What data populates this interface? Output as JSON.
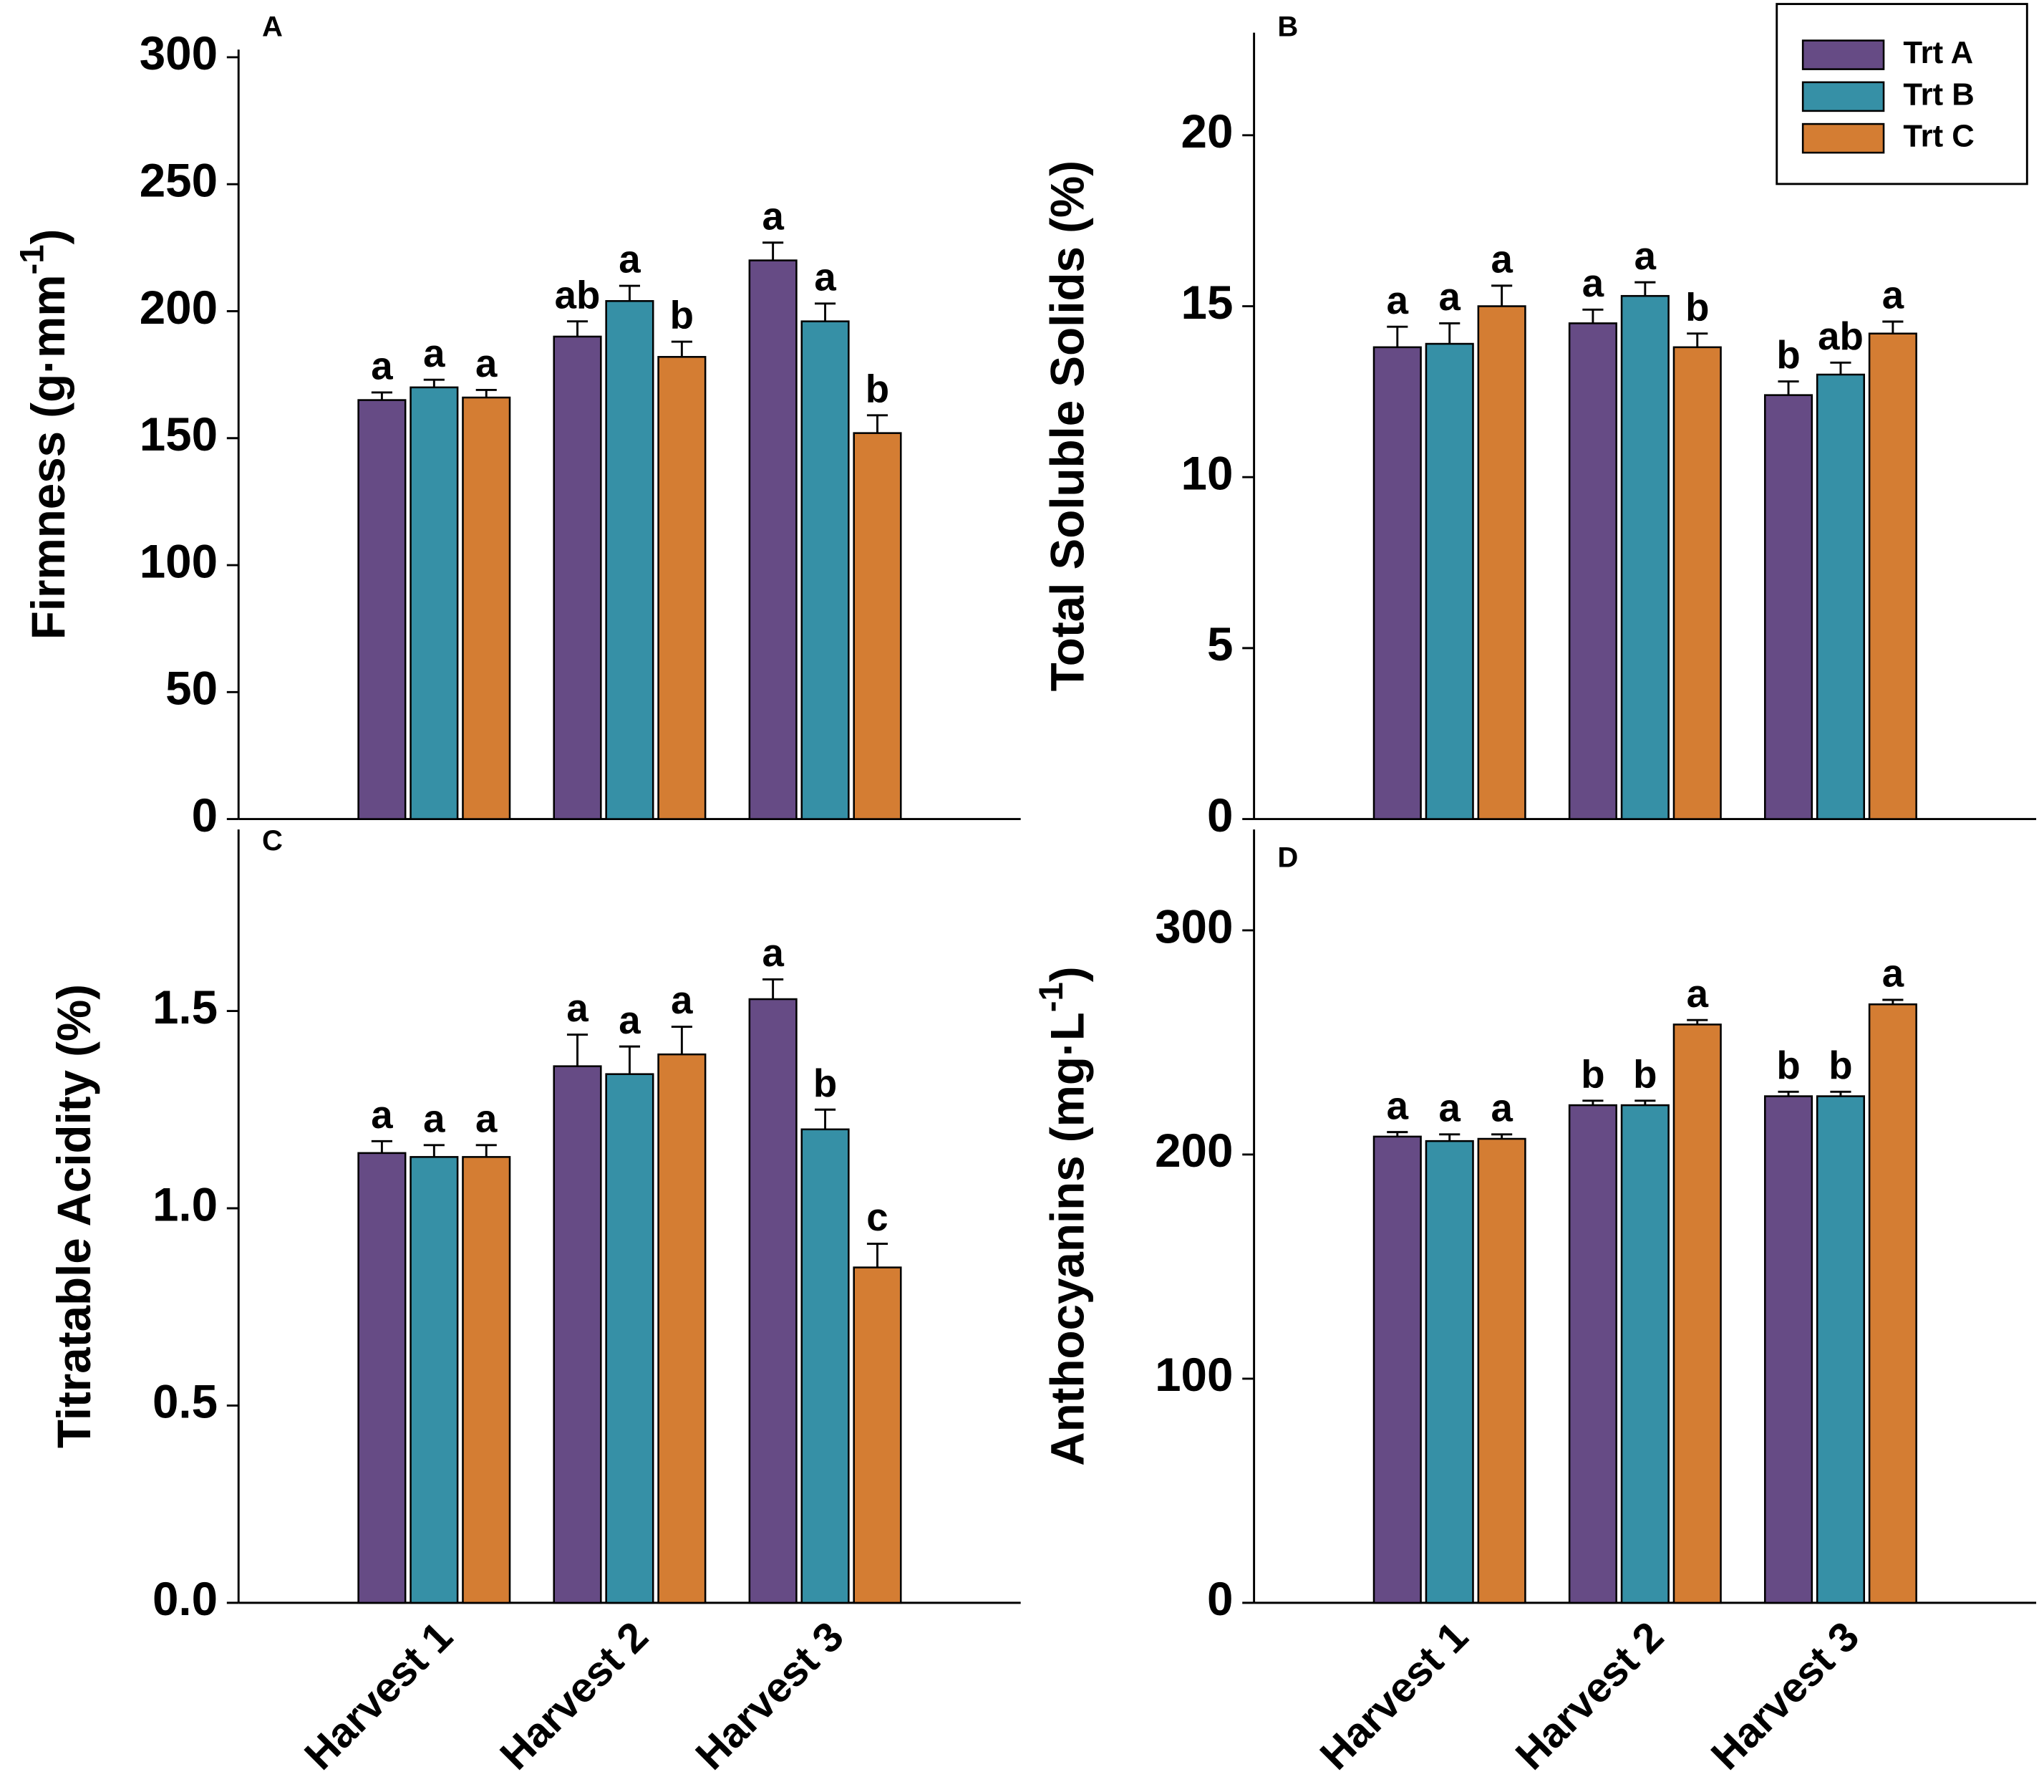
{
  "legend": [
    {
      "name": "Trt A",
      "color": "#664b85"
    },
    {
      "name": "Trt B",
      "color": "#3690a6"
    },
    {
      "name": "Trt C",
      "color": "#d47d33"
    }
  ],
  "chart_data": [
    {
      "type": "bar",
      "panel": "A",
      "ylabel": {
        "text": "Firmness (g·mm",
        "sup": "-1",
        "end": ")"
      },
      "ylim": [
        0,
        303
      ],
      "yticks": [
        0,
        50,
        100,
        150,
        200,
        250,
        300
      ],
      "series": [
        {
          "values": [
            165,
            190,
            220
          ],
          "errors": [
            3,
            6,
            7
          ],
          "letters": [
            "a",
            "ab",
            "a"
          ]
        },
        {
          "values": [
            170,
            204,
            196
          ],
          "errors": [
            3,
            6,
            7
          ],
          "letters": [
            "a",
            "a",
            "a"
          ]
        },
        {
          "values": [
            166,
            182,
            152
          ],
          "errors": [
            3,
            6,
            7
          ],
          "letters": [
            "a",
            "b",
            "b"
          ]
        }
      ]
    },
    {
      "type": "bar",
      "panel": "B",
      "ylabel": {
        "text": "Total Soluble Solids (%)"
      },
      "ylim": [
        0,
        23
      ],
      "yticks": [
        0,
        5,
        10,
        15,
        20
      ],
      "series": [
        {
          "values": [
            13.8,
            14.5,
            12.4
          ],
          "errors": [
            0.6,
            0.4,
            0.4
          ],
          "letters": [
            "a",
            "a",
            "b"
          ]
        },
        {
          "values": [
            13.9,
            15.3,
            13.0
          ],
          "errors": [
            0.6,
            0.4,
            0.35
          ],
          "letters": [
            "a",
            "a",
            "ab"
          ]
        },
        {
          "values": [
            15.0,
            13.8,
            14.2
          ],
          "errors": [
            0.6,
            0.4,
            0.35
          ],
          "letters": [
            "a",
            "b",
            "a"
          ]
        }
      ]
    },
    {
      "type": "bar",
      "panel": "C",
      "ylabel": {
        "text": "Titratable Acidity (%)"
      },
      "categories": [
        "Harvest 1",
        "Harvest 2",
        "Harvest 3"
      ],
      "ylim": [
        0,
        1.96
      ],
      "yticks": [
        {
          "value": 0,
          "label": "0.0"
        },
        0.5,
        {
          "value": 1,
          "label": "1.0"
        },
        1.5
      ],
      "series": [
        {
          "values": [
            1.14,
            1.36,
            1.53
          ],
          "errors": [
            0.03,
            0.08,
            0.05
          ],
          "letters": [
            "a",
            "a",
            "a"
          ]
        },
        {
          "values": [
            1.13,
            1.34,
            1.2
          ],
          "errors": [
            0.03,
            0.07,
            0.05
          ],
          "letters": [
            "a",
            "a",
            "b"
          ]
        },
        {
          "values": [
            1.13,
            1.39,
            0.85
          ],
          "errors": [
            0.03,
            0.07,
            0.06
          ],
          "letters": [
            "a",
            "a",
            "c"
          ]
        }
      ]
    },
    {
      "type": "bar",
      "panel": "D",
      "ylabel": {
        "text": "Anthocyanins (mg·L",
        "sup": "-1",
        "end": ")"
      },
      "categories": [
        "Harvest 1",
        "Harvest 2",
        "Harvest 3"
      ],
      "ylim": [
        0,
        345
      ],
      "yticks": [
        0,
        100,
        200,
        300
      ],
      "series": [
        {
          "values": [
            208,
            222,
            226
          ],
          "errors": [
            2,
            2,
            2
          ],
          "letters": [
            "a",
            "b",
            "b"
          ]
        },
        {
          "values": [
            206,
            222,
            226
          ],
          "errors": [
            3,
            2,
            2
          ],
          "letters": [
            "a",
            "b",
            "b"
          ]
        },
        {
          "values": [
            207,
            258,
            267
          ],
          "errors": [
            2,
            2,
            2
          ],
          "letters": [
            "a",
            "a",
            "a"
          ]
        }
      ]
    }
  ]
}
